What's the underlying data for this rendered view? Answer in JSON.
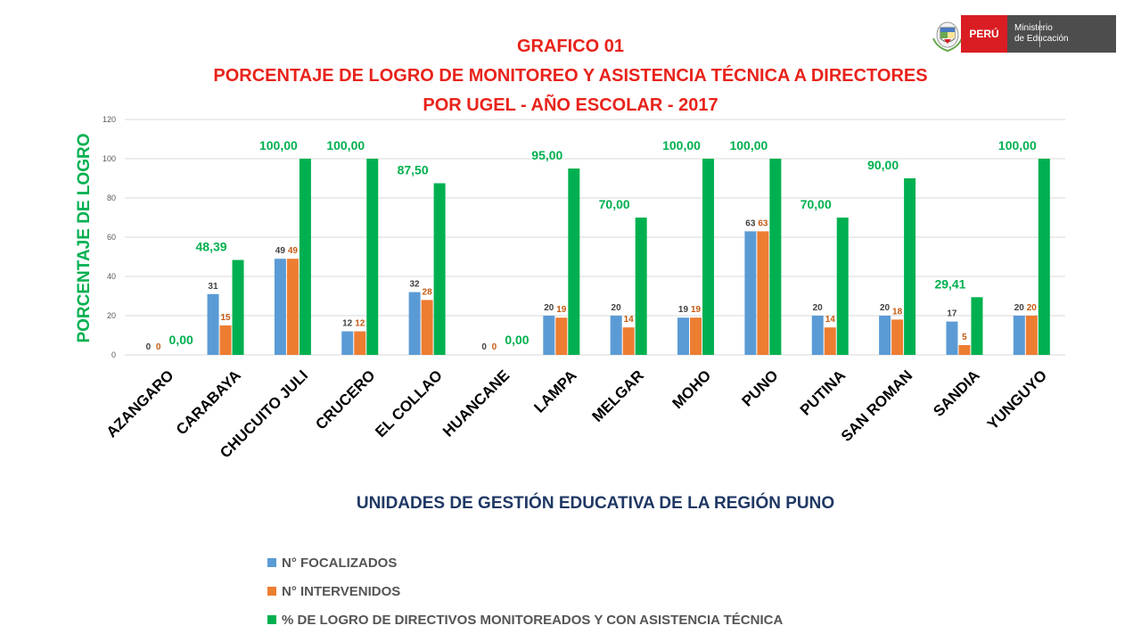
{
  "header": {
    "line1": "GRAFICO 01",
    "line2": "PORCENTAJE DE LOGRO DE MONITOREO Y ASISTENCIA TÉCNICA A DIRECTORES",
    "line3": "POR UGEL - AÑO ESCOLAR - 2017"
  },
  "logo": {
    "peru": "PERÚ",
    "ministerio": "Ministerio",
    "de_educacion": "de Educación"
  },
  "colors": {
    "focalizados": "#5b9bd5",
    "intervenidos": "#ed7d31",
    "logro": "#00b050",
    "title": "#e8231b",
    "xlabel": "#1f3864"
  },
  "chart_data": {
    "type": "bar",
    "title": "PORCENTAJE DE LOGRO DE MONITOREO Y ASISTENCIA TÉCNICA A DIRECTORES POR UGEL - AÑO ESCOLAR - 2017",
    "xlabel": "UNIDADES DE GESTIÓN EDUCATIVA DE LA REGIÓN PUNO",
    "ylabel": "PORCENTAJE DE LOGRO",
    "ylim": [
      0,
      120
    ],
    "yticks": [
      0,
      20,
      40,
      60,
      80,
      100,
      120
    ],
    "grid": true,
    "legend_position": "bottom",
    "categories": [
      "AZANGARO",
      "CARABAYA",
      "CHUCUITO JULI",
      "CRUCERO",
      "EL COLLAO",
      "HUANCANE",
      "LAMPA",
      "MELGAR",
      "MOHO",
      "PUNO",
      "PUTINA",
      "SAN ROMAN",
      "SANDIA",
      "YUNGUYO"
    ],
    "series": [
      {
        "name": "N° FOCALIZADOS",
        "values": [
          0,
          31,
          49,
          12,
          32,
          0,
          20,
          20,
          19,
          63,
          20,
          20,
          17,
          20
        ],
        "labels": [
          "0",
          "31",
          "49",
          "12",
          "32",
          "0",
          "20",
          "20",
          "19",
          "63",
          "20",
          "20",
          "17",
          "20"
        ]
      },
      {
        "name": "N° INTERVENIDOS",
        "values": [
          0,
          15,
          49,
          12,
          28,
          0,
          19,
          14,
          19,
          63,
          14,
          18,
          5,
          20
        ],
        "labels": [
          "0",
          "15",
          "49",
          "12",
          "28",
          "0",
          "19",
          "14",
          "19",
          "63",
          "14",
          "18",
          "5",
          "20"
        ]
      },
      {
        "name": "% DE LOGRO DE DIRECTIVOS  MONITOREADOS Y CON ASISTENCIA TÉCNICA",
        "values": [
          0,
          48.39,
          100,
          100,
          87.5,
          0,
          95,
          70,
          100,
          100,
          70,
          90,
          29.41,
          100
        ],
        "labels": [
          "0,00",
          "48,39",
          "100,00",
          "100,00",
          "87,50",
          "0,00",
          "95,00",
          "70,00",
          "100,00",
          "100,00",
          "70,00",
          "90,00",
          "29,41",
          "100,00"
        ]
      }
    ]
  }
}
